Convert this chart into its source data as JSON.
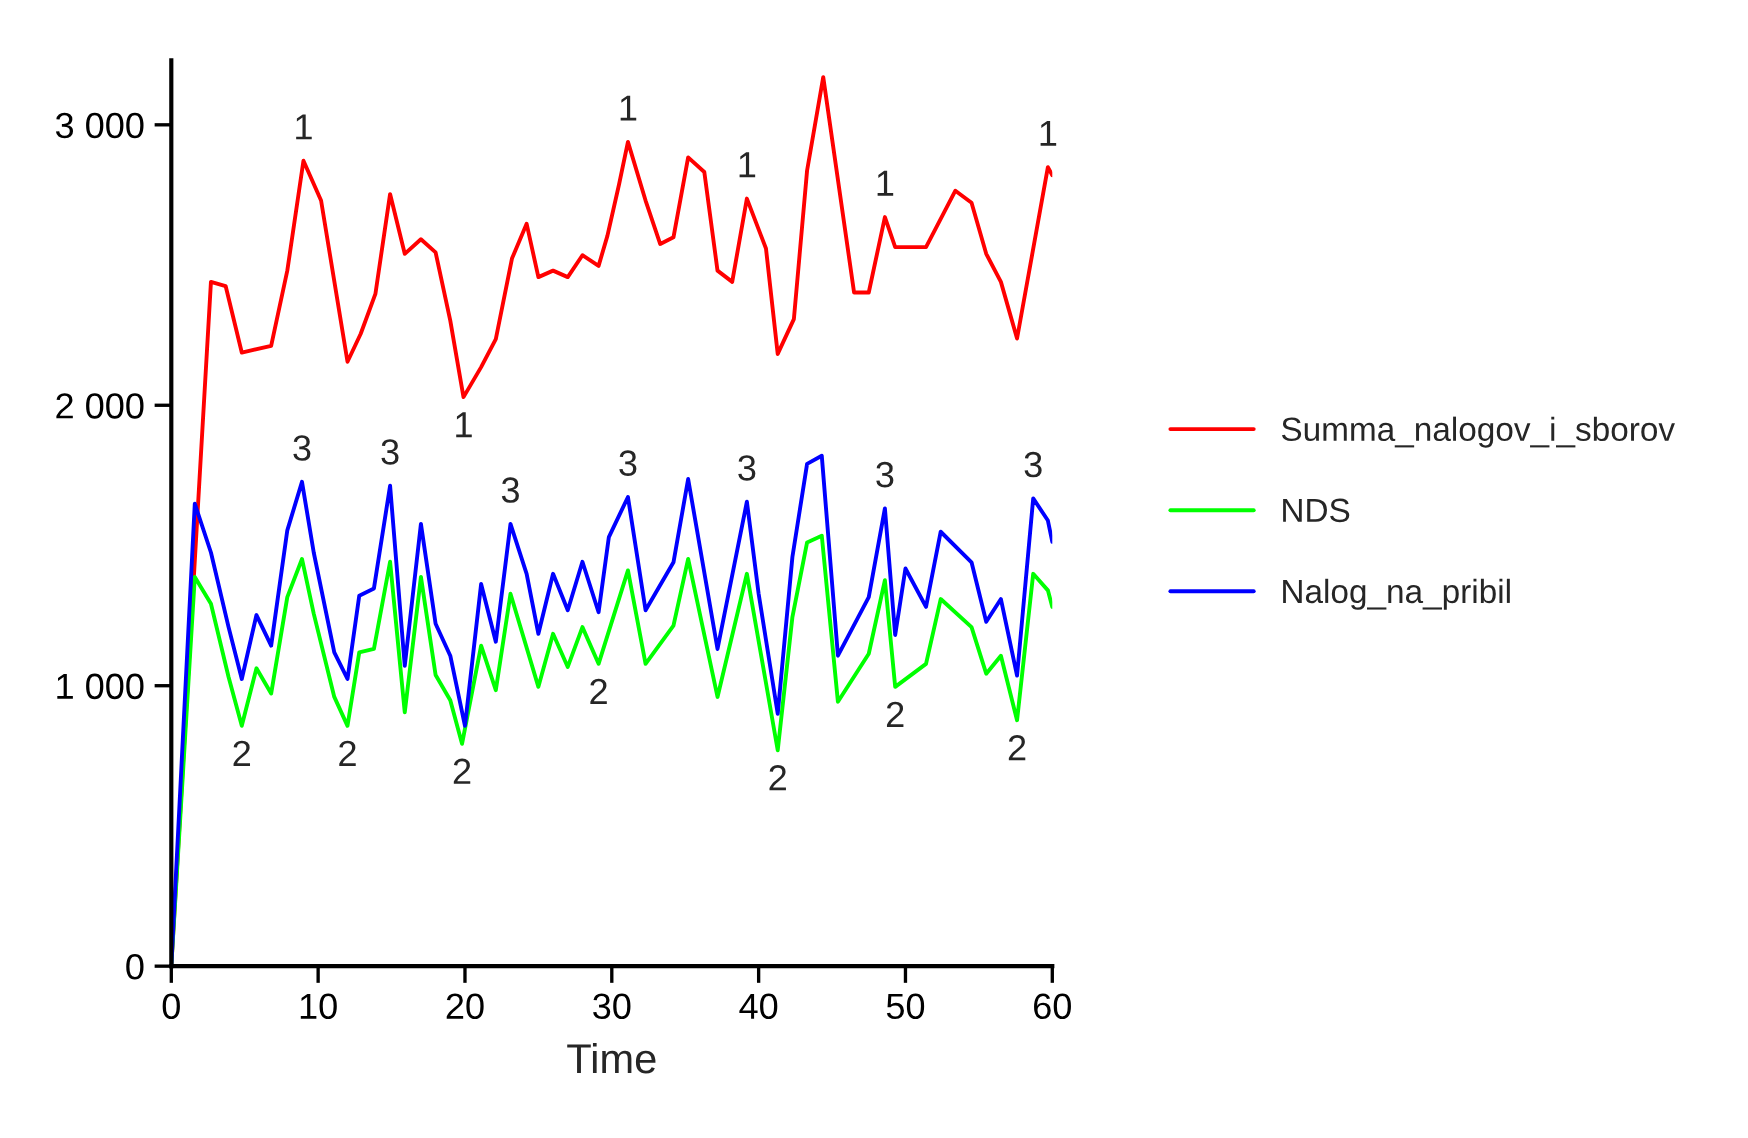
{
  "chart_data": {
    "type": "line",
    "xlabel": "Time",
    "xlim": [
      0,
      60
    ],
    "xticks": [
      0,
      10,
      20,
      30,
      40,
      50,
      60
    ],
    "ylim": [
      0,
      3230
    ],
    "yticks": [
      {
        "value": 0,
        "label": "0"
      },
      {
        "value": 1000,
        "label": "1 000"
      },
      {
        "value": 2000,
        "label": "2 000"
      },
      {
        "value": 3000,
        "label": "3 000"
      }
    ],
    "grid": false,
    "legend": "right",
    "line_style": "solid",
    "series": [
      {
        "name": "Summa_nalogov_i_sborov",
        "color": "#ff0000",
        "x": [
          0,
          2.7,
          3.7,
          4.8,
          6.8,
          7.9,
          9.0,
          10.2,
          12.0,
          12.9,
          13.9,
          14.9,
          15.9,
          17.0,
          18.0,
          19.0,
          19.9,
          21.1,
          22.1,
          23.2,
          24.2,
          25.0,
          26.0,
          27.0,
          28.0,
          29.1,
          29.7,
          30.5,
          31.1,
          32.3,
          33.3,
          34.2,
          35.2,
          36.3,
          37.2,
          38.2,
          39.2,
          40.5,
          41.3,
          42.4,
          43.3,
          44.4,
          46.5,
          47.5,
          48.6,
          49.3,
          51.4,
          53.4,
          54.5,
          55.5,
          56.5,
          57.6,
          59.7,
          60
        ],
        "values": [
          0,
          2440,
          2425,
          2188,
          2212,
          2480,
          2872,
          2730,
          2155,
          2255,
          2397,
          2753,
          2540,
          2592,
          2545,
          2302,
          2029,
          2136,
          2236,
          2523,
          2647,
          2457,
          2480,
          2457,
          2535,
          2497,
          2604,
          2789,
          2939,
          2730,
          2575,
          2599,
          2884,
          2832,
          2480,
          2440,
          2737,
          2559,
          2183,
          2307,
          2837,
          3170,
          2402,
          2402,
          2671,
          2564,
          2564,
          2765,
          2722,
          2540,
          2440,
          2238,
          2849,
          2820
        ]
      },
      {
        "name": "NDS",
        "color": "#00ff00",
        "x": [
          0,
          1.6,
          2.7,
          3.9,
          4.8,
          5.8,
          6.8,
          7.9,
          8.9,
          9.7,
          11.1,
          12.0,
          12.8,
          13.8,
          14.9,
          15.9,
          17.0,
          18.0,
          19.0,
          19.8,
          21.1,
          22.1,
          23.1,
          25.0,
          26.0,
          27.0,
          28.0,
          29.1,
          31.1,
          32.3,
          34.2,
          35.2,
          37.2,
          39.2,
          41.3,
          42.3,
          43.3,
          44.3,
          45.4,
          47.5,
          48.6,
          49.3,
          51.4,
          52.4,
          54.5,
          55.5,
          56.5,
          57.6,
          58.7,
          59.7,
          60
        ],
        "values": [
          0,
          1388,
          1292,
          1031,
          857,
          1062,
          972,
          1316,
          1452,
          1257,
          960,
          857,
          1119,
          1131,
          1442,
          905,
          1388,
          1038,
          948,
          793,
          1143,
          984,
          1328,
          996,
          1185,
          1067,
          1209,
          1078,
          1411,
          1078,
          1214,
          1452,
          960,
          1399,
          770,
          1245,
          1511,
          1535,
          943,
          1114,
          1376,
          996,
          1078,
          1309,
          1209,
          1043,
          1107,
          877,
          1399,
          1340,
          1281
        ]
      },
      {
        "name": "Nalog_na_pribil",
        "color": "#0000ff",
        "x": [
          0,
          1.6,
          2.7,
          3.9,
          4.8,
          5.8,
          6.8,
          7.9,
          8.9,
          9.7,
          11.1,
          12.0,
          12.8,
          13.8,
          14.9,
          15.9,
          17.0,
          18.0,
          19.0,
          20.0,
          21.1,
          22.1,
          23.1,
          24.2,
          25.0,
          26.0,
          27.0,
          28.0,
          29.1,
          29.8,
          31.1,
          32.3,
          34.2,
          35.2,
          37.2,
          39.2,
          40.0,
          41.3,
          42.3,
          43.3,
          44.3,
          45.4,
          47.5,
          48.6,
          49.3,
          50.0,
          51.4,
          52.4,
          54.5,
          55.5,
          56.5,
          57.6,
          58.7,
          59.7,
          60
        ],
        "values": [
          0,
          1649,
          1475,
          1209,
          1024,
          1252,
          1143,
          1554,
          1727,
          1475,
          1119,
          1024,
          1321,
          1347,
          1713,
          1071,
          1577,
          1221,
          1107,
          857,
          1363,
          1157,
          1577,
          1399,
          1185,
          1399,
          1269,
          1442,
          1262,
          1530,
          1673,
          1269,
          1440,
          1737,
          1131,
          1656,
          1328,
          900,
          1459,
          1791,
          1820,
          1107,
          1316,
          1632,
          1181,
          1418,
          1281,
          1549,
          1440,
          1228,
          1309,
          1036,
          1668,
          1589,
          1513
        ]
      }
    ],
    "annotations": [
      {
        "text": "1",
        "x": 9.0,
        "y": 2872
      },
      {
        "text": "1",
        "x": 19.9,
        "y": 2029
      },
      {
        "text": "1",
        "x": 31.1,
        "y": 2939
      },
      {
        "text": "1",
        "x": 39.2,
        "y": 2737
      },
      {
        "text": "1",
        "x": 48.6,
        "y": 2671
      },
      {
        "text": "1",
        "x": 59.7,
        "y": 2849
      },
      {
        "text": "2",
        "x": 4.8,
        "y": 857
      },
      {
        "text": "2",
        "x": 12.0,
        "y": 857
      },
      {
        "text": "2",
        "x": 19.8,
        "y": 793
      },
      {
        "text": "2",
        "x": 29.1,
        "y": 1078
      },
      {
        "text": "2",
        "x": 41.3,
        "y": 770
      },
      {
        "text": "2",
        "x": 49.3,
        "y": 996
      },
      {
        "text": "2",
        "x": 57.6,
        "y": 877
      },
      {
        "text": "3",
        "x": 14.9,
        "y": 1713
      },
      {
        "text": "3",
        "x": 8.9,
        "y": 1727
      },
      {
        "text": "3",
        "x": 23.1,
        "y": 1577
      },
      {
        "text": "3",
        "x": 31.1,
        "y": 1673
      },
      {
        "text": "3",
        "x": 39.2,
        "y": 1656
      },
      {
        "text": "3",
        "x": 48.6,
        "y": 1632
      },
      {
        "text": "3",
        "x": 58.7,
        "y": 1668
      }
    ]
  }
}
